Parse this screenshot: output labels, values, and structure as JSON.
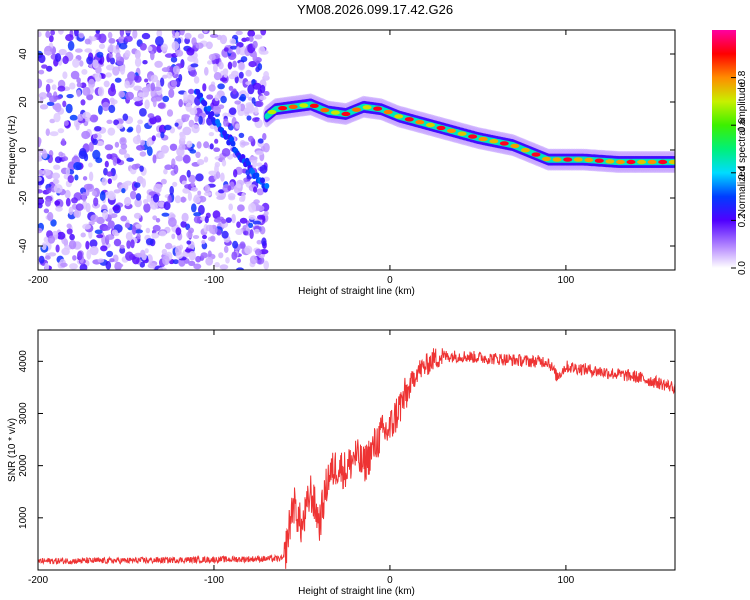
{
  "title": "YM08.2026.099.17.42.G26",
  "chart_data": [
    {
      "type": "heatmap",
      "name": "spectrogram",
      "xlabel": "Height of straight line (km)",
      "ylabel": "Frequency (Hz)",
      "xlim": [
        -200,
        162
      ],
      "ylim": [
        -50,
        50
      ],
      "xticks": [
        -200,
        -100,
        0,
        100
      ],
      "yticks": [
        -40,
        -20,
        0,
        20,
        40
      ],
      "colorbar": {
        "label": "Normalized spectral amplitude",
        "range": [
          0.0,
          1.0
        ],
        "ticks": [
          0.0,
          0.2,
          0.4,
          0.6,
          0.8
        ]
      },
      "noise_region_x": [
        -200,
        -70
      ],
      "ridge": {
        "description": "dominant frequency ridge",
        "x": [
          -70,
          -65,
          -55,
          -45,
          -35,
          -25,
          -15,
          -5,
          5,
          15,
          30,
          50,
          70,
          90,
          100,
          110,
          130,
          150,
          162
        ],
        "y": [
          14,
          17,
          18,
          19,
          16,
          15,
          18,
          17,
          14,
          12,
          9,
          5,
          2,
          -4,
          -4,
          -4,
          -5,
          -5,
          -5
        ]
      },
      "diagonal_streak": {
        "x": [
          -110,
          -100,
          -90,
          -80,
          -70
        ],
        "y": [
          25,
          13,
          3,
          -7,
          -16
        ]
      }
    },
    {
      "type": "line",
      "name": "snr",
      "xlabel": "Height of straight line (km)",
      "ylabel": "SNR (10 * v/v)",
      "xlim": [
        -200,
        162
      ],
      "ylim": [
        0,
        4600
      ],
      "xticks": [
        -200,
        -100,
        0,
        100
      ],
      "yticks": [
        1000,
        2000,
        3000,
        4000
      ],
      "color": "#ee3333",
      "series": [
        {
          "name": "SNR",
          "x": [
            -200,
            -150,
            -100,
            -60,
            -55,
            -50,
            -45,
            -40,
            -35,
            -30,
            -25,
            -20,
            -15,
            -10,
            -5,
            0,
            5,
            10,
            15,
            20,
            25,
            30,
            40,
            60,
            80,
            90,
            95,
            100,
            120,
            140,
            162
          ],
          "y": [
            170,
            180,
            200,
            220,
            1300,
            800,
            1500,
            900,
            1800,
            2000,
            1900,
            2200,
            2000,
            2300,
            2600,
            2700,
            3100,
            3400,
            3800,
            3900,
            4050,
            4100,
            4100,
            4050,
            4000,
            4000,
            3700,
            3900,
            3800,
            3700,
            3500
          ]
        }
      ]
    }
  ]
}
